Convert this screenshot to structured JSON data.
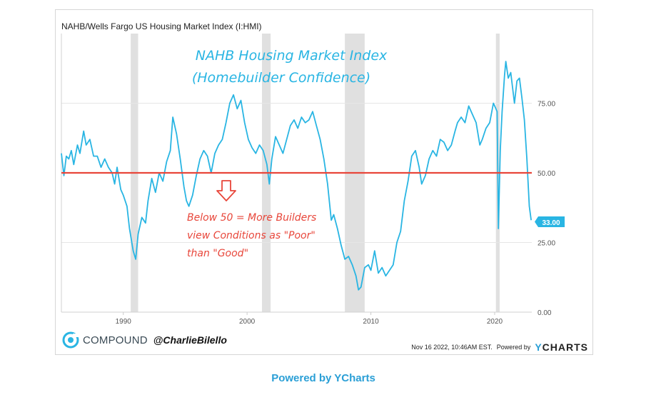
{
  "header": {
    "title": "NAHB/Wells Fargo US Housing Market Index (I:HMI)"
  },
  "colors": {
    "line": "#29b5e3",
    "threshold": "#e8463a",
    "recession": "#e0e0e0",
    "accent": "#2a9fd6",
    "annotation_red": "#e8463a"
  },
  "chart_data": {
    "type": "line",
    "title": "NAHB Housing Market Index (Homebuilder Confidence)",
    "series_name": "NAHB/Wells Fargo US Housing Market Index",
    "x_tick_labels": [
      "1990",
      "2000",
      "2010",
      "2020"
    ],
    "x_ticks": [
      1990,
      2000,
      2010,
      2020
    ],
    "y_tick_labels": [
      "75.00",
      "50.00",
      "25.00",
      "0.00"
    ],
    "y_ticks": [
      75,
      50,
      25,
      0
    ],
    "xlim": [
      1985,
      2023
    ],
    "ylim": [
      0,
      100
    ],
    "last_value_label": "33.00",
    "last_value": 33,
    "threshold": 50,
    "recessions": [
      [
        1990.6,
        1991.2
      ],
      [
        2001.2,
        2001.9
      ],
      [
        2007.9,
        2009.5
      ],
      [
        2020.1,
        2020.4
      ]
    ],
    "points": [
      [
        1985.0,
        57
      ],
      [
        1985.2,
        49
      ],
      [
        1985.4,
        56
      ],
      [
        1985.6,
        55
      ],
      [
        1985.8,
        58
      ],
      [
        1986.0,
        53
      ],
      [
        1986.3,
        60
      ],
      [
        1986.5,
        57
      ],
      [
        1986.8,
        65
      ],
      [
        1987.0,
        60
      ],
      [
        1987.3,
        62
      ],
      [
        1987.6,
        56
      ],
      [
        1987.9,
        56
      ],
      [
        1988.2,
        52
      ],
      [
        1988.5,
        55
      ],
      [
        1988.8,
        52
      ],
      [
        1989.1,
        50
      ],
      [
        1989.3,
        46
      ],
      [
        1989.5,
        52
      ],
      [
        1989.8,
        44
      ],
      [
        1990.0,
        42
      ],
      [
        1990.3,
        38
      ],
      [
        1990.5,
        30
      ],
      [
        1990.8,
        22
      ],
      [
        1991.0,
        19
      ],
      [
        1991.2,
        28
      ],
      [
        1991.5,
        34
      ],
      [
        1991.8,
        32
      ],
      [
        1992.0,
        40
      ],
      [
        1992.3,
        48
      ],
      [
        1992.6,
        43
      ],
      [
        1992.9,
        50
      ],
      [
        1993.2,
        47
      ],
      [
        1993.5,
        54
      ],
      [
        1993.8,
        58
      ],
      [
        1994.0,
        70
      ],
      [
        1994.3,
        64
      ],
      [
        1994.6,
        55
      ],
      [
        1994.9,
        45
      ],
      [
        1995.1,
        40
      ],
      [
        1995.3,
        38
      ],
      [
        1995.6,
        42
      ],
      [
        1995.9,
        49
      ],
      [
        1996.2,
        55
      ],
      [
        1996.5,
        58
      ],
      [
        1996.8,
        56
      ],
      [
        1997.1,
        50
      ],
      [
        1997.4,
        57
      ],
      [
        1997.7,
        60
      ],
      [
        1998.0,
        62
      ],
      [
        1998.3,
        68
      ],
      [
        1998.6,
        75
      ],
      [
        1998.9,
        78
      ],
      [
        1999.2,
        73
      ],
      [
        1999.5,
        76
      ],
      [
        1999.8,
        68
      ],
      [
        2000.1,
        62
      ],
      [
        2000.4,
        59
      ],
      [
        2000.7,
        57
      ],
      [
        2001.0,
        60
      ],
      [
        2001.3,
        58
      ],
      [
        2001.6,
        53
      ],
      [
        2001.8,
        46
      ],
      [
        2002.0,
        55
      ],
      [
        2002.3,
        63
      ],
      [
        2002.6,
        60
      ],
      [
        2002.9,
        57
      ],
      [
        2003.2,
        62
      ],
      [
        2003.5,
        67
      ],
      [
        2003.8,
        69
      ],
      [
        2004.1,
        66
      ],
      [
        2004.4,
        70
      ],
      [
        2004.7,
        68
      ],
      [
        2005.0,
        69
      ],
      [
        2005.3,
        72
      ],
      [
        2005.6,
        67
      ],
      [
        2005.9,
        62
      ],
      [
        2006.2,
        55
      ],
      [
        2006.5,
        46
      ],
      [
        2006.8,
        33
      ],
      [
        2007.0,
        35
      ],
      [
        2007.3,
        30
      ],
      [
        2007.6,
        24
      ],
      [
        2007.9,
        19
      ],
      [
        2008.2,
        20
      ],
      [
        2008.5,
        17
      ],
      [
        2008.8,
        13
      ],
      [
        2009.0,
        8
      ],
      [
        2009.2,
        9
      ],
      [
        2009.5,
        16
      ],
      [
        2009.8,
        17
      ],
      [
        2010.0,
        15
      ],
      [
        2010.3,
        22
      ],
      [
        2010.6,
        14
      ],
      [
        2010.9,
        16
      ],
      [
        2011.2,
        13
      ],
      [
        2011.5,
        15
      ],
      [
        2011.8,
        17
      ],
      [
        2012.1,
        25
      ],
      [
        2012.4,
        29
      ],
      [
        2012.7,
        40
      ],
      [
        2013.0,
        47
      ],
      [
        2013.3,
        56
      ],
      [
        2013.6,
        58
      ],
      [
        2013.9,
        52
      ],
      [
        2014.1,
        46
      ],
      [
        2014.4,
        49
      ],
      [
        2014.7,
        55
      ],
      [
        2015.0,
        58
      ],
      [
        2015.3,
        56
      ],
      [
        2015.6,
        62
      ],
      [
        2015.9,
        61
      ],
      [
        2016.2,
        58
      ],
      [
        2016.5,
        60
      ],
      [
        2016.8,
        65
      ],
      [
        2017.0,
        68
      ],
      [
        2017.3,
        70
      ],
      [
        2017.6,
        68
      ],
      [
        2017.9,
        74
      ],
      [
        2018.2,
        71
      ],
      [
        2018.5,
        68
      ],
      [
        2018.8,
        60
      ],
      [
        2019.0,
        62
      ],
      [
        2019.3,
        66
      ],
      [
        2019.6,
        68
      ],
      [
        2019.9,
        75
      ],
      [
        2020.0,
        74
      ],
      [
        2020.2,
        72
      ],
      [
        2020.3,
        30
      ],
      [
        2020.45,
        58
      ],
      [
        2020.6,
        72
      ],
      [
        2020.8,
        85
      ],
      [
        2020.9,
        90
      ],
      [
        2021.1,
        84
      ],
      [
        2021.3,
        86
      ],
      [
        2021.6,
        75
      ],
      [
        2021.8,
        83
      ],
      [
        2022.0,
        84
      ],
      [
        2022.2,
        77
      ],
      [
        2022.4,
        69
      ],
      [
        2022.6,
        55
      ],
      [
        2022.8,
        38
      ],
      [
        2022.95,
        33
      ]
    ],
    "annotations": {
      "chart_title_line1": "NAHB Housing Market Index",
      "chart_title_line2": "(Homebuilder Confidence)",
      "note_line1": "Below 50 = More Builders",
      "note_line2": "view Conditions as \"Poor\"",
      "note_line3": "than \"Good\""
    }
  },
  "footer": {
    "brand_name": "COMPOUND",
    "handle": "@CharlieBilello",
    "timestamp": "Nov 16 2022, 10:46AM EST.",
    "powered_small": "Powered by",
    "ycharts_y": "Y",
    "ycharts_rest": "CHARTS",
    "powered_bottom": "Powered by YCharts"
  }
}
